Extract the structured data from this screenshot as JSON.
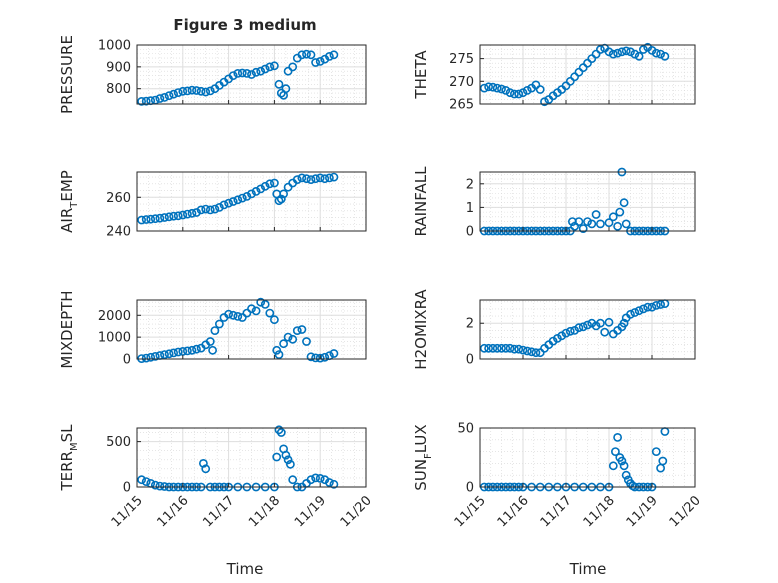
{
  "figure": {
    "title": "Figure 3 medium",
    "xlabel_left": "Time",
    "xlabel_right": "Time",
    "marker_color": "#0072BD",
    "grid": true,
    "minor_grid": true
  },
  "chart_data": [
    {
      "type": "scatter",
      "panel": "pressure",
      "ylabel": "PRESSURE",
      "ylim": [
        730,
        1000
      ],
      "yticks": [
        800,
        900,
        1000
      ],
      "xlim": [
        15.0,
        20.0
      ],
      "xticks": [
        "11/15",
        "11/16",
        "11/17",
        "11/18",
        "11/19",
        "11/20"
      ],
      "x": [
        15.1,
        15.2,
        15.3,
        15.4,
        15.5,
        15.6,
        15.7,
        15.8,
        15.9,
        16.0,
        16.1,
        16.2,
        16.3,
        16.4,
        16.5,
        16.6,
        16.7,
        16.8,
        16.9,
        17.0,
        17.1,
        17.2,
        17.3,
        17.4,
        17.5,
        17.6,
        17.7,
        17.8,
        17.9,
        18.0,
        18.1,
        18.15,
        18.2,
        18.25,
        18.3,
        18.4,
        18.5,
        18.6,
        18.7,
        18.8,
        18.9,
        19.0,
        19.1,
        19.2,
        19.3
      ],
      "y": [
        742,
        743,
        745,
        748,
        755,
        760,
        768,
        775,
        782,
        788,
        790,
        793,
        792,
        788,
        785,
        790,
        800,
        815,
        830,
        845,
        860,
        870,
        872,
        870,
        865,
        875,
        880,
        890,
        900,
        905,
        820,
        780,
        770,
        800,
        880,
        900,
        940,
        955,
        958,
        955,
        920,
        925,
        935,
        948,
        955
      ]
    },
    {
      "type": "scatter",
      "panel": "theta",
      "ylabel": "THETA",
      "ylim": [
        265,
        278
      ],
      "yticks": [
        265,
        270,
        275
      ],
      "xlim": [
        15.0,
        20.0
      ],
      "xticks": [
        "11/15",
        "11/16",
        "11/17",
        "11/18",
        "11/19",
        "11/20"
      ],
      "x": [
        15.1,
        15.2,
        15.3,
        15.4,
        15.5,
        15.6,
        15.7,
        15.8,
        15.9,
        16.0,
        16.1,
        16.2,
        16.3,
        16.4,
        16.5,
        16.6,
        16.7,
        16.8,
        16.9,
        17.0,
        17.1,
        17.2,
        17.3,
        17.4,
        17.5,
        17.6,
        17.7,
        17.8,
        17.9,
        18.0,
        18.1,
        18.2,
        18.3,
        18.4,
        18.5,
        18.6,
        18.7,
        18.8,
        18.9,
        19.0,
        19.1,
        19.2,
        19.3
      ],
      "y": [
        268.5,
        268.8,
        268.7,
        268.5,
        268.3,
        268.0,
        267.5,
        267.2,
        267.2,
        267.5,
        268.0,
        268.5,
        269.2,
        268.2,
        265.5,
        266.0,
        266.8,
        267.5,
        268.2,
        269.0,
        270.0,
        271.0,
        272.0,
        273.0,
        274.0,
        275.0,
        276.0,
        277.0,
        277.3,
        276.5,
        276.0,
        276.2,
        276.5,
        276.7,
        276.5,
        276.0,
        275.5,
        277.0,
        277.5,
        276.8,
        276.2,
        276.0,
        275.5
      ]
    },
    {
      "type": "scatter",
      "panel": "air_temp",
      "ylabel": "AIR",
      "ylabel_sub": "T",
      "ylabel_rest": "EMP",
      "ylim": [
        240,
        275
      ],
      "yticks": [
        240,
        260
      ],
      "xlim": [
        15.0,
        20.0
      ],
      "xticks": [
        "11/15",
        "11/16",
        "11/17",
        "11/18",
        "11/19",
        "11/20"
      ],
      "x": [
        15.1,
        15.2,
        15.3,
        15.4,
        15.5,
        15.6,
        15.7,
        15.8,
        15.9,
        16.0,
        16.1,
        16.2,
        16.3,
        16.4,
        16.5,
        16.6,
        16.7,
        16.8,
        16.9,
        17.0,
        17.1,
        17.2,
        17.3,
        17.4,
        17.5,
        17.6,
        17.7,
        17.8,
        17.9,
        18.0,
        18.05,
        18.1,
        18.15,
        18.2,
        18.3,
        18.4,
        18.5,
        18.6,
        18.7,
        18.8,
        18.9,
        19.0,
        19.1,
        19.2,
        19.3
      ],
      "y": [
        246.5,
        246.8,
        247.0,
        247.3,
        247.6,
        248.0,
        248.4,
        248.8,
        249.0,
        249.5,
        250.0,
        250.5,
        251.0,
        252.5,
        253.0,
        252.5,
        253.0,
        254.0,
        255.5,
        256.5,
        257.5,
        258.5,
        259.5,
        260.5,
        262.0,
        263.5,
        265.0,
        266.5,
        268.0,
        268.5,
        262.0,
        258.0,
        259.0,
        262.0,
        266.0,
        268.5,
        270.5,
        271.5,
        271.0,
        270.5,
        271.0,
        271.5,
        271.0,
        271.5,
        272.0
      ]
    },
    {
      "type": "scatter",
      "panel": "rainfall",
      "ylabel": "RAINFALL",
      "ylim": [
        0,
        2.5
      ],
      "yticks": [
        0,
        1,
        2
      ],
      "xlim": [
        15.0,
        20.0
      ],
      "xticks": [
        "11/15",
        "11/16",
        "11/17",
        "11/18",
        "11/19",
        "11/20"
      ],
      "x": [
        15.1,
        15.2,
        15.3,
        15.4,
        15.5,
        15.6,
        15.7,
        15.8,
        15.9,
        16.0,
        16.1,
        16.2,
        16.3,
        16.4,
        16.5,
        16.6,
        16.7,
        16.8,
        16.9,
        17.0,
        17.1,
        17.15,
        17.2,
        17.3,
        17.4,
        17.5,
        17.6,
        17.7,
        17.8,
        18.0,
        18.1,
        18.2,
        18.25,
        18.3,
        18.35,
        18.4,
        18.5,
        18.6,
        18.7,
        18.8,
        18.9,
        19.0,
        19.1,
        19.2,
        19.3
      ],
      "y": [
        0,
        0,
        0,
        0,
        0,
        0,
        0,
        0,
        0,
        0,
        0,
        0,
        0,
        0,
        0,
        0,
        0,
        0,
        0,
        0,
        0,
        0.4,
        0.2,
        0.4,
        0.1,
        0.4,
        0.3,
        0.7,
        0.3,
        0.35,
        0.6,
        0.2,
        0.8,
        2.5,
        1.2,
        0.3,
        0,
        0,
        0,
        0,
        0,
        0,
        0,
        0,
        0
      ]
    },
    {
      "type": "scatter",
      "panel": "mixdepth",
      "ylabel": "MIXDEPTH",
      "ylim": [
        0,
        2700
      ],
      "yticks": [
        0,
        1000,
        2000
      ],
      "xlim": [
        15.0,
        20.0
      ],
      "xticks": [
        "11/15",
        "11/16",
        "11/17",
        "11/18",
        "11/19",
        "11/20"
      ],
      "x": [
        15.1,
        15.2,
        15.3,
        15.4,
        15.5,
        15.6,
        15.7,
        15.8,
        15.9,
        16.0,
        16.1,
        16.2,
        16.3,
        16.4,
        16.5,
        16.6,
        16.65,
        16.7,
        16.8,
        16.9,
        17.0,
        17.1,
        17.2,
        17.3,
        17.4,
        17.5,
        17.6,
        17.7,
        17.8,
        17.9,
        18.0,
        18.05,
        18.1,
        18.2,
        18.3,
        18.4,
        18.5,
        18.6,
        18.7,
        18.8,
        18.9,
        19.0,
        19.1,
        19.2,
        19.3
      ],
      "y": [
        20,
        40,
        80,
        120,
        160,
        200,
        240,
        280,
        320,
        350,
        370,
        400,
        450,
        500,
        650,
        800,
        400,
        1300,
        1600,
        1900,
        2050,
        2000,
        1950,
        1900,
        2100,
        2300,
        2200,
        2600,
        2500,
        2100,
        1800,
        400,
        200,
        700,
        1000,
        900,
        1300,
        1350,
        800,
        100,
        50,
        40,
        80,
        150,
        250
      ]
    },
    {
      "type": "scatter",
      "panel": "h2omixra",
      "ylabel": "H2OMIXRA",
      "ylim": [
        0,
        3.3
      ],
      "yticks": [
        0,
        2
      ],
      "xlim": [
        15.0,
        20.0
      ],
      "xticks": [
        "11/15",
        "11/16",
        "11/17",
        "11/18",
        "11/19",
        "11/20"
      ],
      "x": [
        15.1,
        15.2,
        15.3,
        15.4,
        15.5,
        15.6,
        15.7,
        15.8,
        15.9,
        16.0,
        16.1,
        16.2,
        16.3,
        16.4,
        16.5,
        16.6,
        16.7,
        16.8,
        16.9,
        17.0,
        17.1,
        17.2,
        17.3,
        17.4,
        17.5,
        17.6,
        17.7,
        17.8,
        17.9,
        18.0,
        18.1,
        18.2,
        18.3,
        18.35,
        18.4,
        18.5,
        18.6,
        18.7,
        18.8,
        18.9,
        19.0,
        19.1,
        19.2,
        19.3
      ],
      "y": [
        0.6,
        0.6,
        0.6,
        0.6,
        0.6,
        0.6,
        0.6,
        0.55,
        0.55,
        0.5,
        0.45,
        0.4,
        0.35,
        0.35,
        0.6,
        0.8,
        1.0,
        1.15,
        1.3,
        1.45,
        1.55,
        1.6,
        1.75,
        1.8,
        1.9,
        2.0,
        1.85,
        2.0,
        1.5,
        2.05,
        1.4,
        1.6,
        1.8,
        2.0,
        2.3,
        2.5,
        2.6,
        2.7,
        2.8,
        2.9,
        2.9,
        3.0,
        3.05,
        3.1
      ]
    },
    {
      "type": "scatter",
      "panel": "terr_msl",
      "ylabel": "TERR",
      "ylabel_sub": "M",
      "ylabel_rest": "SL",
      "ylim": [
        0,
        650
      ],
      "yticks": [
        0,
        500
      ],
      "xlim": [
        15.0,
        20.0
      ],
      "xticks": [
        "11/15",
        "11/16",
        "11/17",
        "11/18",
        "11/19",
        "11/20"
      ],
      "x": [
        15.1,
        15.2,
        15.3,
        15.4,
        15.5,
        15.6,
        15.7,
        15.8,
        15.9,
        16.0,
        16.1,
        16.2,
        16.3,
        16.4,
        16.45,
        16.5,
        16.6,
        16.7,
        16.8,
        16.9,
        17.0,
        17.2,
        17.4,
        17.6,
        17.8,
        18.0,
        18.05,
        18.1,
        18.15,
        18.2,
        18.25,
        18.3,
        18.35,
        18.4,
        18.5,
        18.6,
        18.7,
        18.8,
        18.9,
        19.0,
        19.1,
        19.2,
        19.3
      ],
      "y": [
        80,
        60,
        40,
        20,
        10,
        5,
        0,
        0,
        0,
        0,
        0,
        0,
        0,
        0,
        260,
        200,
        0,
        0,
        0,
        0,
        0,
        0,
        0,
        0,
        0,
        0,
        330,
        630,
        600,
        420,
        350,
        300,
        250,
        80,
        0,
        0,
        40,
        80,
        100,
        95,
        80,
        50,
        30
      ]
    },
    {
      "type": "scatter",
      "panel": "sun_flux",
      "ylabel": "SUN",
      "ylabel_sub": "F",
      "ylabel_rest": "LUX",
      "ylim": [
        0,
        50
      ],
      "yticks": [
        0,
        50
      ],
      "xlim": [
        15.0,
        20.0
      ],
      "xticks": [
        "11/15",
        "11/16",
        "11/17",
        "11/18",
        "11/19",
        "11/20"
      ],
      "x": [
        15.1,
        15.2,
        15.3,
        15.4,
        15.5,
        15.6,
        15.7,
        15.8,
        15.9,
        16.0,
        16.2,
        16.4,
        16.6,
        16.8,
        17.0,
        17.2,
        17.4,
        17.6,
        17.8,
        18.0,
        18.1,
        18.15,
        18.2,
        18.25,
        18.3,
        18.35,
        18.4,
        18.45,
        18.5,
        18.55,
        18.6,
        18.7,
        18.8,
        18.9,
        19.0,
        19.1,
        19.2,
        19.25,
        19.3
      ],
      "y": [
        0,
        0,
        0,
        0,
        0,
        0,
        0,
        0,
        0,
        0,
        0,
        0,
        0,
        0,
        0,
        0,
        0,
        0,
        0,
        0,
        18,
        30,
        42,
        25,
        22,
        18,
        10,
        6,
        3,
        1,
        0,
        0,
        0,
        0,
        0,
        30,
        16,
        22,
        47
      ]
    }
  ]
}
